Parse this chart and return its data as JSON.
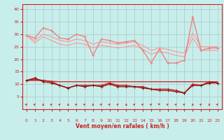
{
  "xlabel": "Vent moyen/en rafales ( km/h )",
  "background_color": "#c8eeec",
  "grid_color": "#a8c8c8",
  "xlim": [
    -0.5,
    23.5
  ],
  "ylim": [
    0,
    42
  ],
  "yticks": [
    5,
    10,
    15,
    20,
    25,
    30,
    35,
    40
  ],
  "xticks": [
    0,
    1,
    2,
    3,
    4,
    5,
    6,
    7,
    8,
    9,
    10,
    11,
    12,
    13,
    14,
    15,
    16,
    17,
    18,
    19,
    20,
    21,
    22,
    23
  ],
  "x": [
    0,
    1,
    2,
    3,
    4,
    5,
    6,
    7,
    8,
    9,
    10,
    11,
    12,
    13,
    14,
    15,
    16,
    17,
    18,
    19,
    20,
    21,
    22,
    23
  ],
  "series": [
    {
      "y": [
        29.5,
        28.5,
        32.5,
        31.5,
        28.5,
        28.0,
        30.0,
        29.0,
        21.5,
        28.0,
        27.5,
        26.5,
        27.0,
        27.5,
        23.5,
        18.5,
        24.0,
        18.5,
        18.5,
        19.5,
        37.0,
        23.5,
        24.5,
        24.5
      ],
      "color": "#f08080",
      "linewidth": 1.0,
      "marker": "+",
      "markersize": 3.5,
      "zorder": 4
    },
    {
      "y": [
        29.5,
        27.5,
        30.0,
        29.0,
        27.5,
        27.0,
        28.0,
        27.5,
        26.0,
        27.0,
        26.5,
        26.0,
        26.5,
        27.0,
        25.5,
        23.5,
        24.5,
        24.0,
        23.0,
        22.5,
        30.5,
        25.0,
        25.0,
        25.0
      ],
      "color": "#f4a0a0",
      "linewidth": 0.9,
      "marker": null,
      "markersize": 0,
      "zorder": 2
    },
    {
      "y": [
        29.5,
        26.5,
        29.0,
        27.5,
        26.0,
        25.5,
        26.5,
        26.0,
        24.5,
        25.5,
        25.0,
        24.5,
        25.0,
        25.5,
        24.0,
        22.0,
        23.0,
        22.5,
        21.5,
        21.0,
        28.5,
        23.5,
        23.5,
        23.5
      ],
      "color": "#f4a0a0",
      "linewidth": 0.9,
      "marker": null,
      "markersize": 0,
      "zorder": 2
    },
    {
      "y": [
        11.5,
        12.0,
        11.5,
        11.0,
        9.5,
        8.5,
        9.5,
        9.5,
        9.5,
        9.5,
        10.5,
        9.5,
        9.5,
        9.0,
        9.0,
        8.0,
        8.0,
        8.0,
        7.5,
        6.5,
        10.0,
        9.5,
        11.0,
        10.5
      ],
      "color": "#cc2222",
      "linewidth": 1.1,
      "marker": "+",
      "markersize": 3.5,
      "zorder": 5
    },
    {
      "y": [
        11.5,
        11.5,
        11.5,
        11.2,
        11.0,
        11.0,
        11.0,
        11.0,
        11.0,
        11.0,
        11.0,
        11.0,
        11.0,
        11.0,
        11.0,
        11.0,
        11.0,
        11.0,
        11.0,
        11.0,
        11.0,
        11.0,
        11.0,
        11.0
      ],
      "color": "#cc3333",
      "linewidth": 0.9,
      "marker": null,
      "markersize": 0,
      "zorder": 3
    },
    {
      "y": [
        11.5,
        11.5,
        11.5,
        11.0,
        11.0,
        11.0,
        11.0,
        11.0,
        11.0,
        11.0,
        11.0,
        11.0,
        11.0,
        11.0,
        11.0,
        11.0,
        11.0,
        11.0,
        11.0,
        11.0,
        11.0,
        11.0,
        11.0,
        11.0
      ],
      "color": "#ee5555",
      "linewidth": 0.7,
      "marker": null,
      "markersize": 0,
      "zorder": 2
    },
    {
      "y": [
        11.5,
        12.5,
        11.0,
        10.5,
        9.5,
        8.5,
        9.5,
        9.0,
        9.5,
        9.0,
        10.0,
        9.0,
        9.0,
        9.0,
        8.5,
        8.0,
        7.5,
        7.5,
        7.0,
        6.5,
        9.5,
        9.5,
        10.5,
        10.5
      ],
      "color": "#881111",
      "linewidth": 0.9,
      "marker": "+",
      "markersize": 3.5,
      "zorder": 5
    }
  ],
  "arrow_color": "#cc3333",
  "arrow_angles_deg": [
    45,
    45,
    0,
    45,
    45,
    0,
    45,
    45,
    0,
    45,
    45,
    45,
    0,
    45,
    45,
    45,
    90,
    45,
    45,
    45,
    0,
    45,
    0,
    45
  ]
}
